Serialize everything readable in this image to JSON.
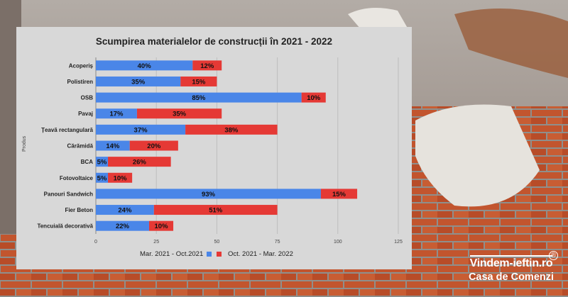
{
  "brand": {
    "site": "Vindem-ieftin.ro",
    "registered": "®",
    "tagline": "Casa de Comenzi"
  },
  "colors": {
    "series_1": "#4a86e8",
    "series_2": "#e53935",
    "card_bg": "#d8d8d8"
  },
  "chart_data": {
    "type": "bar",
    "orientation": "horizontal",
    "stacked": true,
    "title": "Scumpirea materialelor de construcții în 2021 - 2022",
    "ylabel": "Produs",
    "xlabel": "",
    "xlim": [
      0,
      125
    ],
    "x_ticks": [
      0,
      25,
      50,
      75,
      100,
      125
    ],
    "grid": true,
    "legend_position": "bottom",
    "value_suffix": "%",
    "categories": [
      "Acoperiș",
      "Polistiren",
      "OSB",
      "Pavaj",
      "Țeavă rectangulară",
      "Cărămidă",
      "BCA",
      "Fotovoltaice",
      "Panouri Sandwich",
      "Fier Beton",
      "Tencuială decorativă"
    ],
    "series": [
      {
        "name": "Mar. 2021 - Oct.2021",
        "values": [
          40,
          35,
          85,
          17,
          37,
          14,
          5,
          5,
          93,
          24,
          22
        ]
      },
      {
        "name": "Oct. 2021 - Mar. 2022",
        "values": [
          12,
          15,
          10,
          35,
          38,
          20,
          26,
          10,
          15,
          51,
          10
        ]
      }
    ]
  }
}
